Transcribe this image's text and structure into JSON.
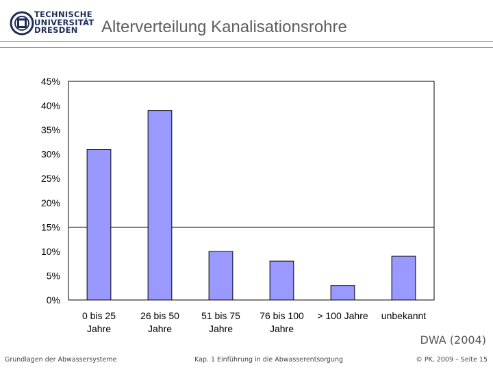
{
  "header": {
    "logo_lines": [
      "TECHNISCHE",
      "UNIVERSITÄT",
      "DRESDEN"
    ],
    "title": "Alterverteilung Kanalisationsrohre"
  },
  "chart_data": {
    "type": "bar",
    "categories": [
      [
        "0 bis 25",
        "Jahre"
      ],
      [
        "26 bis 50",
        "Jahre"
      ],
      [
        "51 bis 75",
        "Jahre"
      ],
      [
        "76 bis 100",
        "Jahre"
      ],
      [
        "> 100 Jahre"
      ],
      [
        "unbekannt"
      ]
    ],
    "values": [
      31,
      39,
      10,
      8,
      3,
      9
    ],
    "ylim": [
      0,
      45
    ],
    "yticks": [
      0,
      5,
      10,
      15,
      20,
      25,
      30,
      35,
      40,
      45
    ],
    "ytick_labels": [
      "0%",
      "5%",
      "10%",
      "15%",
      "20%",
      "25%",
      "30%",
      "35%",
      "40%",
      "45%"
    ],
    "reference_line": 15,
    "bar_color": "#9999ff",
    "grid": false
  },
  "source": "DWA (2004)",
  "footer": {
    "left": "Grundlagen der Abwassersysteme",
    "center": "Kap. 1 Einführung in die Abwasserentsorgung",
    "right": "© PK, 2009 – Seite 15"
  }
}
